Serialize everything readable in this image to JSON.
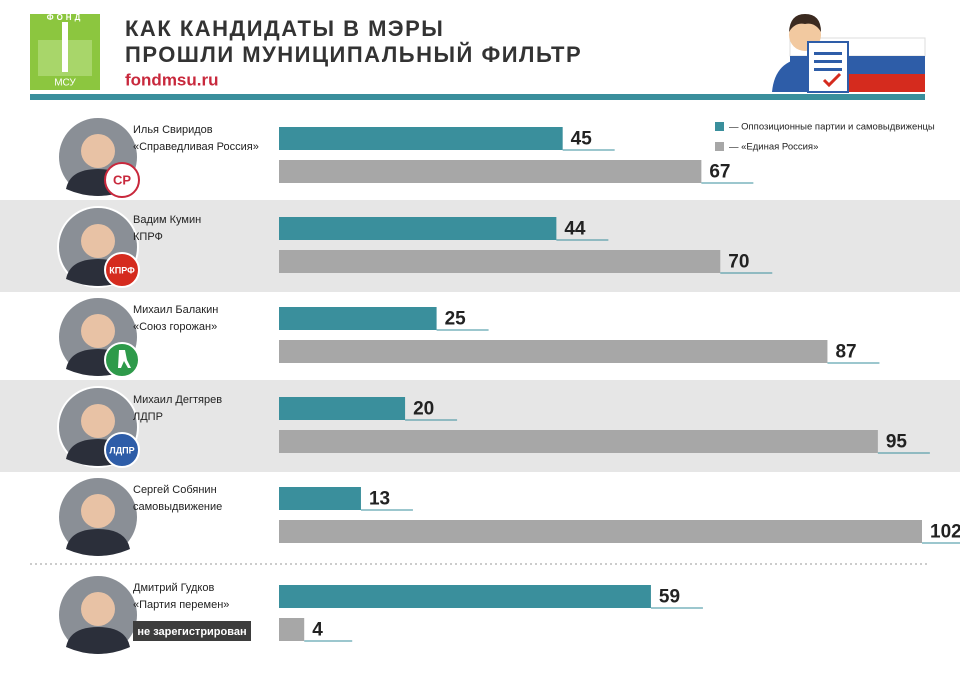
{
  "chart_data": {
    "type": "bar",
    "orientation": "horizontal",
    "title": [
      "КАК КАНДИДАТЫ В МЭРЫ",
      "ПРОШЛИ МУНИЦИПАЛЬНЫЙ ФИЛЬТР"
    ],
    "source": "fondmsu.ru",
    "logo": {
      "top": "ФОНД",
      "bottom": "МСУ"
    },
    "categories": [
      "Илья Свиридов",
      "Вадим Кумин",
      "Михаил Балакин",
      "Михаил Дегтярев",
      "Сергей Собянин",
      "Дмитрий Гудков"
    ],
    "parties": [
      "«Справедливая Россия»",
      "КПРФ",
      "«Союз горожан»",
      "ЛДПР",
      "самовыдвижение",
      "«Партия перемен»"
    ],
    "party_badges": [
      "СР",
      "КПРФ",
      null,
      "ЛДПР",
      null,
      null
    ],
    "status": [
      null,
      null,
      null,
      null,
      null,
      "не зарегистрирован"
    ],
    "series": [
      {
        "name": "— Оппозиционные партии и самовыдвиженцы",
        "color": "#3a8f9c",
        "values": [
          45,
          44,
          25,
          20,
          13,
          59
        ]
      },
      {
        "name": "— «Единая Россия»",
        "color": "#a7a7a7",
        "values": [
          67,
          70,
          87,
          95,
          102,
          4
        ]
      }
    ]
  }
}
